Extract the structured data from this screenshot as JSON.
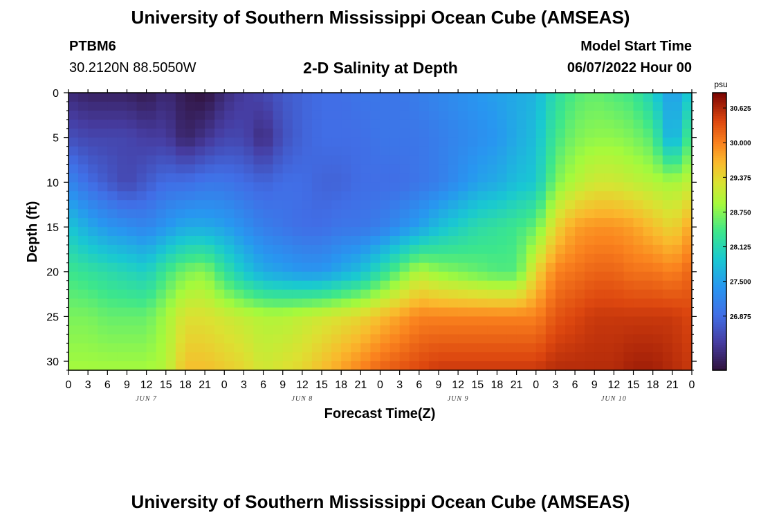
{
  "header": {
    "title": "University of Southern Mississippi Ocean Cube (AMSEAS)",
    "station": "PTBM6",
    "coords": "30.2120N  88.5050W",
    "chart_title": "2-D Salinity at Depth",
    "start_label": "Model Start Time",
    "start_value": "06/07/2022 Hour 00"
  },
  "footer": {
    "title": "University of Southern Mississippi Ocean Cube (AMSEAS)"
  },
  "chart_data": {
    "type": "heatmap",
    "title": "2-D Salinity at Depth",
    "xlabel": "Forecast Time(Z)",
    "ylabel": "Depth (ft)",
    "x_hours": [
      0,
      3,
      6,
      9,
      12,
      15,
      18,
      21,
      24,
      27,
      30,
      33,
      36,
      39,
      42,
      45,
      48,
      51,
      54,
      57,
      60,
      63,
      66,
      69,
      72,
      75,
      78,
      81,
      84,
      87,
      90,
      93,
      96
    ],
    "x_tick_labels": [
      "0",
      "3",
      "6",
      "9",
      "12",
      "15",
      "18",
      "21",
      "0",
      "3",
      "6",
      "9",
      "12",
      "15",
      "18",
      "21",
      "0",
      "3",
      "6",
      "9",
      "12",
      "15",
      "18",
      "21",
      "0",
      "3",
      "6",
      "9",
      "12",
      "15",
      "18",
      "21",
      "0"
    ],
    "day_labels": [
      {
        "label": "JUN 7",
        "hour": 12
      },
      {
        "label": "JUN 8",
        "hour": 36
      },
      {
        "label": "JUN 9",
        "hour": 60
      },
      {
        "label": "JUN 10",
        "hour": 84
      }
    ],
    "ylim": [
      0,
      31
    ],
    "y_ticks": [
      0,
      5,
      10,
      15,
      20,
      25,
      30
    ],
    "depths_ft": [
      0,
      5,
      10,
      15,
      20,
      25,
      31
    ],
    "salinity_psu": [
      [
        26.2,
        26.1,
        26.1,
        26.1,
        26.0,
        26.2,
        26.0,
        25.9,
        26.2,
        26.4,
        26.5,
        26.7,
        26.8,
        26.9,
        26.9,
        27.0,
        27.0,
        27.0,
        27.1,
        27.2,
        27.3,
        27.4,
        27.5,
        27.6,
        27.7,
        28.2,
        28.5,
        28.6,
        28.5,
        28.4,
        28.0,
        27.4,
        28.0
      ],
      [
        26.6,
        26.5,
        26.5,
        26.5,
        26.4,
        26.4,
        26.1,
        26.3,
        26.5,
        26.5,
        26.2,
        26.6,
        26.8,
        26.9,
        26.9,
        26.9,
        27.0,
        27.0,
        27.0,
        27.1,
        27.2,
        27.3,
        27.4,
        27.6,
        27.8,
        28.4,
        28.7,
        28.8,
        28.8,
        28.7,
        28.5,
        27.5,
        28.6
      ],
      [
        27.2,
        26.9,
        26.7,
        26.5,
        26.7,
        26.9,
        26.9,
        27.0,
        27.0,
        26.9,
        26.8,
        26.9,
        26.9,
        26.8,
        26.8,
        26.9,
        26.9,
        26.9,
        27.0,
        27.1,
        27.3,
        27.5,
        27.6,
        27.8,
        27.9,
        28.7,
        29.0,
        29.2,
        29.2,
        29.1,
        29.0,
        28.9,
        29.1
      ],
      [
        27.9,
        27.6,
        27.4,
        27.3,
        27.2,
        27.4,
        27.6,
        27.6,
        27.5,
        27.3,
        27.1,
        27.0,
        26.9,
        26.9,
        27.0,
        27.0,
        27.1,
        27.3,
        27.5,
        27.8,
        28.0,
        28.2,
        28.3,
        28.4,
        28.6,
        29.4,
        29.8,
        29.9,
        29.9,
        29.8,
        29.6,
        29.4,
        29.8
      ],
      [
        28.4,
        28.3,
        28.2,
        28.1,
        28.0,
        28.4,
        28.7,
        28.8,
        28.3,
        27.9,
        27.6,
        27.5,
        27.4,
        27.4,
        27.6,
        27.8,
        28.2,
        28.6,
        29.0,
        28.8,
        28.7,
        28.6,
        28.5,
        28.5,
        29.4,
        30.0,
        30.1,
        30.2,
        30.2,
        30.1,
        30.1,
        30.0,
        30.2
      ],
      [
        28.7,
        28.7,
        28.6,
        28.6,
        28.6,
        28.9,
        29.3,
        29.3,
        29.2,
        29.1,
        29.0,
        29.0,
        29.1,
        29.2,
        29.3,
        29.4,
        29.6,
        29.8,
        30.0,
        30.0,
        30.0,
        30.0,
        30.0,
        30.0,
        30.0,
        30.3,
        30.4,
        30.5,
        30.5,
        30.5,
        30.5,
        30.5,
        30.4
      ],
      [
        28.9,
        28.9,
        28.9,
        28.9,
        28.9,
        29.0,
        29.6,
        29.6,
        29.5,
        29.4,
        29.2,
        29.3,
        29.4,
        29.6,
        29.8,
        30.0,
        30.2,
        30.3,
        30.4,
        30.5,
        30.5,
        30.5,
        30.5,
        30.5,
        30.5,
        30.6,
        30.6,
        30.6,
        30.6,
        30.7,
        30.7,
        30.6,
        30.5
      ]
    ],
    "colorbar": {
      "unit": "psu",
      "min": 25.9,
      "max": 30.9,
      "tick_values": [
        30.625,
        30.0,
        29.375,
        28.75,
        28.125,
        27.5,
        26.875
      ],
      "tick_labels": [
        "30.625",
        "30.000",
        "29.375",
        "28.750",
        "28.125",
        "27.500",
        "26.875"
      ]
    }
  }
}
